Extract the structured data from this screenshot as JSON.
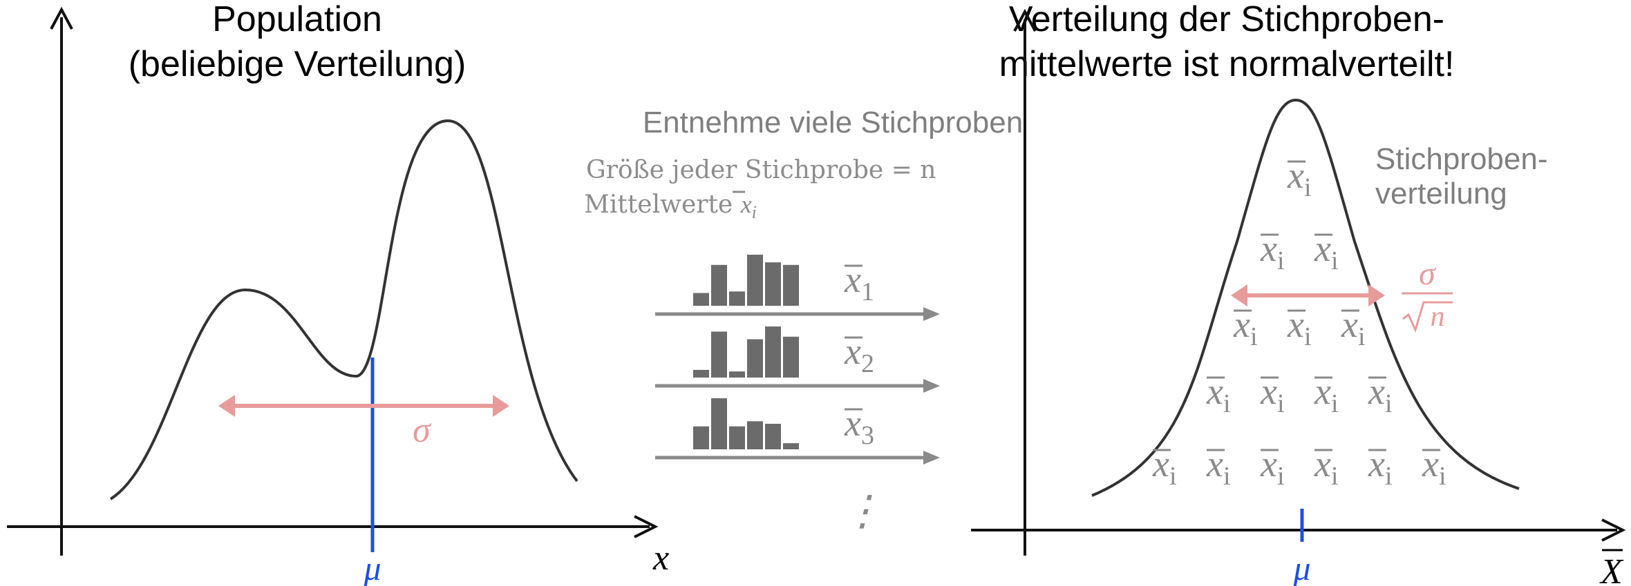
{
  "left_panel": {
    "title_line1": "Population",
    "title_line2": "(beliebige Verteilung)",
    "axis_x_label": "x",
    "mu_label": "μ",
    "sigma_label": "σ"
  },
  "middle_panel": {
    "heading": "Entnehme viele Stichproben",
    "note_line1": "Größe jeder Stichprobe = n",
    "note_line2_text": "Mittelwerte",
    "sample_mean_symbol": "x",
    "sample_mean_subscript": "i",
    "samples": [
      {
        "symbol": "x",
        "subscript": "1",
        "bars": [
          0.25,
          0.8,
          0.28,
          1.0,
          0.85,
          0.8
        ]
      },
      {
        "symbol": "x",
        "subscript": "2",
        "bars": [
          0.15,
          0.9,
          0.12,
          0.75,
          1.0,
          0.8
        ]
      },
      {
        "symbol": "x",
        "subscript": "3",
        "bars": [
          0.45,
          1.0,
          0.45,
          0.55,
          0.5,
          0.12
        ]
      }
    ],
    "ellipsis": "⋮"
  },
  "right_panel": {
    "title_line1": "Verteilung der Stichproben-",
    "title_line2": "mittelwerte ist normalverteilt!",
    "side_label_line1": "Stichproben-",
    "side_label_line2": "verteilung",
    "axis_x_symbol": "X",
    "mu_label": "μ",
    "spread_numerator": "σ",
    "spread_denominator": "n",
    "means_rows": [
      1,
      2,
      3,
      4,
      6
    ],
    "mean_symbol": "x",
    "mean_subscript": "i"
  },
  "colors": {
    "curve": "#333333",
    "axis": "#111111",
    "mu_line": "#1f4fe0",
    "sigma_arrow": "#e89b9b",
    "gray_text": "#8a8a8a",
    "histogram": "#6b6b6b",
    "sample_arrow": "#8a8a8a"
  }
}
